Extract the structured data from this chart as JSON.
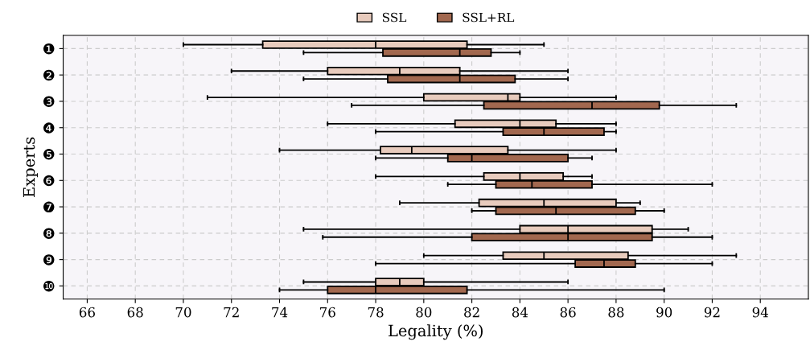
{
  "chart_data": {
    "type": "box",
    "orientation": "horizontal",
    "xlabel": "Legality (%)",
    "ylabel": "Experts",
    "categories": [
      "❶",
      "❷",
      "❸",
      "❹",
      "❺",
      "❻",
      "❼",
      "❽",
      "❾",
      "❿"
    ],
    "xlim": [
      65,
      96
    ],
    "xticks": [
      66,
      68,
      70,
      72,
      74,
      76,
      78,
      80,
      82,
      84,
      86,
      88,
      90,
      92,
      94
    ],
    "grid": true,
    "legend": "top",
    "series": [
      {
        "name": "SSL",
        "color": "#e8cbbd",
        "boxes": [
          {
            "low": 70,
            "q1": 73.3,
            "median": 78,
            "q3": 81.8,
            "high": 85
          },
          {
            "low": 72,
            "q1": 76,
            "median": 79,
            "q3": 81.5,
            "high": 86
          },
          {
            "low": 71,
            "q1": 80,
            "median": 83.5,
            "q3": 84,
            "high": 88
          },
          {
            "low": 76,
            "q1": 81.3,
            "median": 84,
            "q3": 85.5,
            "high": 88
          },
          {
            "low": 74,
            "q1": 78.2,
            "median": 79.5,
            "q3": 83.5,
            "high": 88
          },
          {
            "low": 78,
            "q1": 82.5,
            "median": 84,
            "q3": 85.8,
            "high": 87
          },
          {
            "low": 79,
            "q1": 82.3,
            "median": 85,
            "q3": 88,
            "high": 89
          },
          {
            "low": 75,
            "q1": 84,
            "median": 86,
            "q3": 89.5,
            "high": 91
          },
          {
            "low": 80,
            "q1": 83.3,
            "median": 85,
            "q3": 88.5,
            "high": 93
          },
          {
            "low": 75,
            "q1": 78,
            "median": 79,
            "q3": 80,
            "high": 86
          }
        ]
      },
      {
        "name": "SSL+RL",
        "color": "#a2684f",
        "boxes": [
          {
            "low": 75,
            "q1": 78.3,
            "median": 81.5,
            "q3": 82.8,
            "high": 84
          },
          {
            "low": 75,
            "q1": 78.5,
            "median": 81.5,
            "q3": 83.8,
            "high": 86
          },
          {
            "low": 77,
            "q1": 82.5,
            "median": 87,
            "q3": 89.8,
            "high": 93
          },
          {
            "low": 78,
            "q1": 83.3,
            "median": 85,
            "q3": 87.5,
            "high": 88
          },
          {
            "low": 78,
            "q1": 81,
            "median": 82,
            "q3": 86,
            "high": 87
          },
          {
            "low": 81,
            "q1": 83,
            "median": 84.5,
            "q3": 87,
            "high": 92
          },
          {
            "low": 82,
            "q1": 83,
            "median": 85.5,
            "q3": 88.8,
            "high": 90
          },
          {
            "low": 75.8,
            "q1": 82,
            "median": 86,
            "q3": 89.5,
            "high": 92
          },
          {
            "low": 78,
            "q1": 86.3,
            "median": 87.5,
            "q3": 88.8,
            "high": 92
          },
          {
            "low": 74,
            "q1": 76,
            "median": 78,
            "q3": 81.8,
            "high": 90
          }
        ]
      }
    ]
  }
}
